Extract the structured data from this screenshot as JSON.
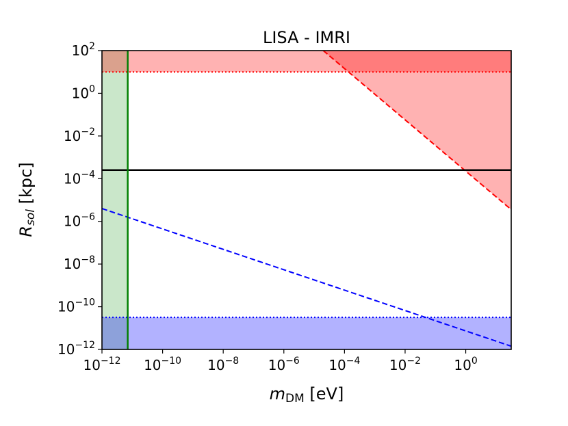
{
  "chart_data": {
    "type": "line",
    "title": "LISA - IMRI",
    "xlabel": {
      "main": "m",
      "sub": "DM",
      "unit": " [eV]"
    },
    "ylabel": {
      "main": "R",
      "sub": "sol",
      "unit": " [kpc]"
    },
    "xscale": "log",
    "yscale": "log",
    "xlim_exp": [
      -12,
      1.5
    ],
    "ylim_exp": [
      -12,
      2
    ],
    "xticks": [
      {
        "exp": -12,
        "base": "10",
        "sup": "−12"
      },
      {
        "exp": -10,
        "base": "10",
        "sup": "−10"
      },
      {
        "exp": -8,
        "base": "10",
        "sup": "−8"
      },
      {
        "exp": -6,
        "base": "10",
        "sup": "−6"
      },
      {
        "exp": -4,
        "base": "10",
        "sup": "−4"
      },
      {
        "exp": -2,
        "base": "10",
        "sup": "−2"
      },
      {
        "exp": 0,
        "base": "10",
        "sup": "0"
      }
    ],
    "yticks": [
      {
        "exp": 2,
        "base": "10",
        "sup": "2"
      },
      {
        "exp": 0,
        "base": "10",
        "sup": "0"
      },
      {
        "exp": -2,
        "base": "10",
        "sup": "−2"
      },
      {
        "exp": -4,
        "base": "10",
        "sup": "−4"
      },
      {
        "exp": -6,
        "base": "10",
        "sup": "−6"
      },
      {
        "exp": -8,
        "base": "10",
        "sup": "−8"
      },
      {
        "exp": -10,
        "base": "10",
        "sup": "−10"
      },
      {
        "exp": -12,
        "base": "10",
        "sup": "−12"
      }
    ],
    "regions": [
      {
        "name": "green-band",
        "x_exp": [
          -12,
          -11.15
        ],
        "y_exp": [
          -12,
          2
        ],
        "color": "#2ca02c",
        "opacity": 0.25
      },
      {
        "name": "red-top-band",
        "x_exp": [
          -12,
          1.5
        ],
        "y_exp": [
          1.0,
          2
        ],
        "color": "#ff0000",
        "opacity": 0.3
      },
      {
        "name": "blue-bottom-band",
        "x_exp": [
          -12,
          1.5
        ],
        "y_exp": [
          -12,
          -10.5
        ],
        "color": "#0000ff",
        "opacity": 0.3
      }
    ],
    "red_triangle": {
      "points_exp": [
        [
          -4.7,
          2
        ],
        [
          1.5,
          2
        ],
        [
          1.5,
          -5.45
        ]
      ],
      "color": "#ff0000",
      "opacity": 0.3
    },
    "series": [
      {
        "name": "red-dashed",
        "color": "#ff0000",
        "style": "dashed",
        "width": 2,
        "x_exp": [
          -4.7,
          1.5
        ],
        "y_exp": [
          2,
          -5.45
        ]
      },
      {
        "name": "blue-dashed",
        "color": "#0000ff",
        "style": "dashed",
        "width": 2,
        "x_exp": [
          -12,
          1.5
        ],
        "y_exp": [
          -5.4,
          -11.85
        ]
      },
      {
        "name": "red-dotted",
        "color": "#ff0000",
        "style": "dotted",
        "width": 2,
        "x_exp": [
          -12,
          1.5
        ],
        "y_exp": [
          1.0,
          1.0
        ]
      },
      {
        "name": "blue-dotted",
        "color": "#0000ff",
        "style": "dotted",
        "width": 2,
        "x_exp": [
          -12,
          1.5
        ],
        "y_exp": [
          -10.5,
          -10.5
        ]
      },
      {
        "name": "black-solid",
        "color": "#000000",
        "style": "solid",
        "width": 2.5,
        "x_exp": [
          -12,
          1.5
        ],
        "y_exp": [
          -3.6,
          -3.6
        ]
      },
      {
        "name": "green-vertical",
        "color": "#008000",
        "style": "solid",
        "width": 2.5,
        "x_exp": [
          -11.15,
          -11.15
        ],
        "y_exp": [
          -12,
          2
        ]
      }
    ]
  }
}
